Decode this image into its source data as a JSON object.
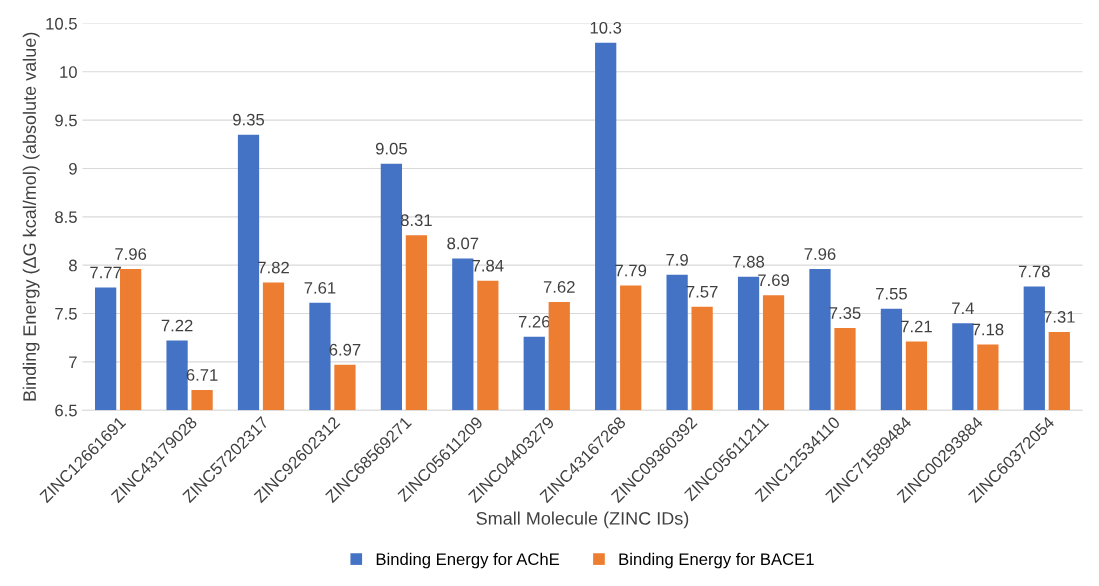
{
  "chart_data": {
    "type": "bar",
    "xlabel": "Small Molecule (ZINC IDs)",
    "ylabel": "Binding Energy (ΔG kcal/mol) (absolute value)",
    "categories": [
      "ZINC12661691",
      "ZINC43179028",
      "ZINC57202317",
      "ZINC92602312",
      "ZINC68569271",
      "ZINC05611209",
      "ZINC04403279",
      "ZINC43167268",
      "ZINC09360392",
      "ZINC05611211",
      "ZINC12534110",
      "ZINC71589484",
      "ZINC00293884",
      "ZINC60372054"
    ],
    "series": [
      {
        "name": "Binding Energy for AChE",
        "color": "#4472c4",
        "values": [
          7.77,
          7.22,
          9.35,
          7.61,
          9.05,
          8.07,
          7.26,
          10.3,
          7.9,
          7.88,
          7.96,
          7.55,
          7.4,
          7.78
        ]
      },
      {
        "name": "Binding Energy for BACE1",
        "color": "#ed7d31",
        "values": [
          7.96,
          6.71,
          7.82,
          6.97,
          8.31,
          7.84,
          7.62,
          7.79,
          7.57,
          7.69,
          7.35,
          7.21,
          7.18,
          7.31
        ]
      }
    ],
    "ylim": [
      6.5,
      10.5
    ],
    "yticks": [
      6.5,
      7,
      7.5,
      8,
      8.5,
      9,
      9.5,
      10,
      10.5
    ],
    "grid": "y",
    "legend": "bottom",
    "data_labels": true
  }
}
